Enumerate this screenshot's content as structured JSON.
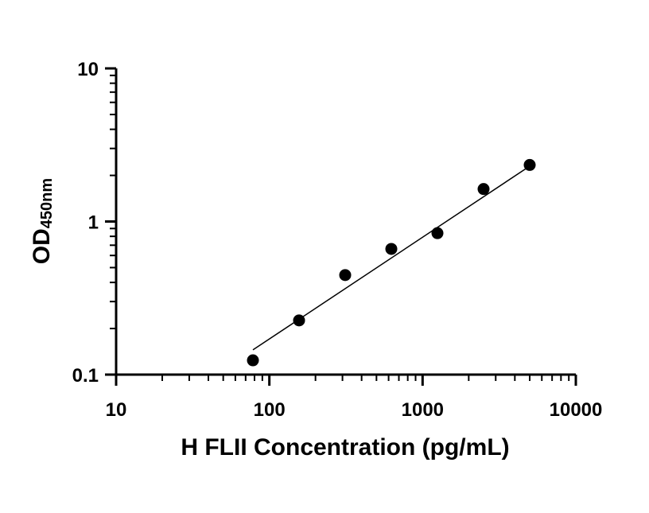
{
  "chart_data": {
    "type": "scatter",
    "title": "",
    "xlabel": "H FLII Concentration (pg/mL)",
    "ylabel_main": "OD",
    "ylabel_sub": "450nm",
    "x_scale": "log",
    "y_scale": "log",
    "xlim": [
      10,
      10000
    ],
    "ylim": [
      0.1,
      10
    ],
    "x_ticks": [
      10,
      100,
      1000,
      10000
    ],
    "x_tick_labels": [
      "10",
      "100",
      "1000",
      "10000"
    ],
    "y_ticks": [
      0.1,
      1,
      10
    ],
    "y_tick_labels": [
      "0.1",
      "1",
      "10"
    ],
    "grid": false,
    "legend": "none",
    "point_color": "#000000",
    "series": [
      {
        "x": [
          78.125,
          156.25,
          312.5,
          625,
          1250,
          2500,
          5000
        ],
        "y": [
          0.124,
          0.226,
          0.447,
          0.662,
          0.839,
          1.63,
          2.34
        ]
      }
    ],
    "fit_line": {
      "x": [
        78.125,
        5000
      ],
      "y": [
        0.145,
        2.3
      ]
    }
  }
}
